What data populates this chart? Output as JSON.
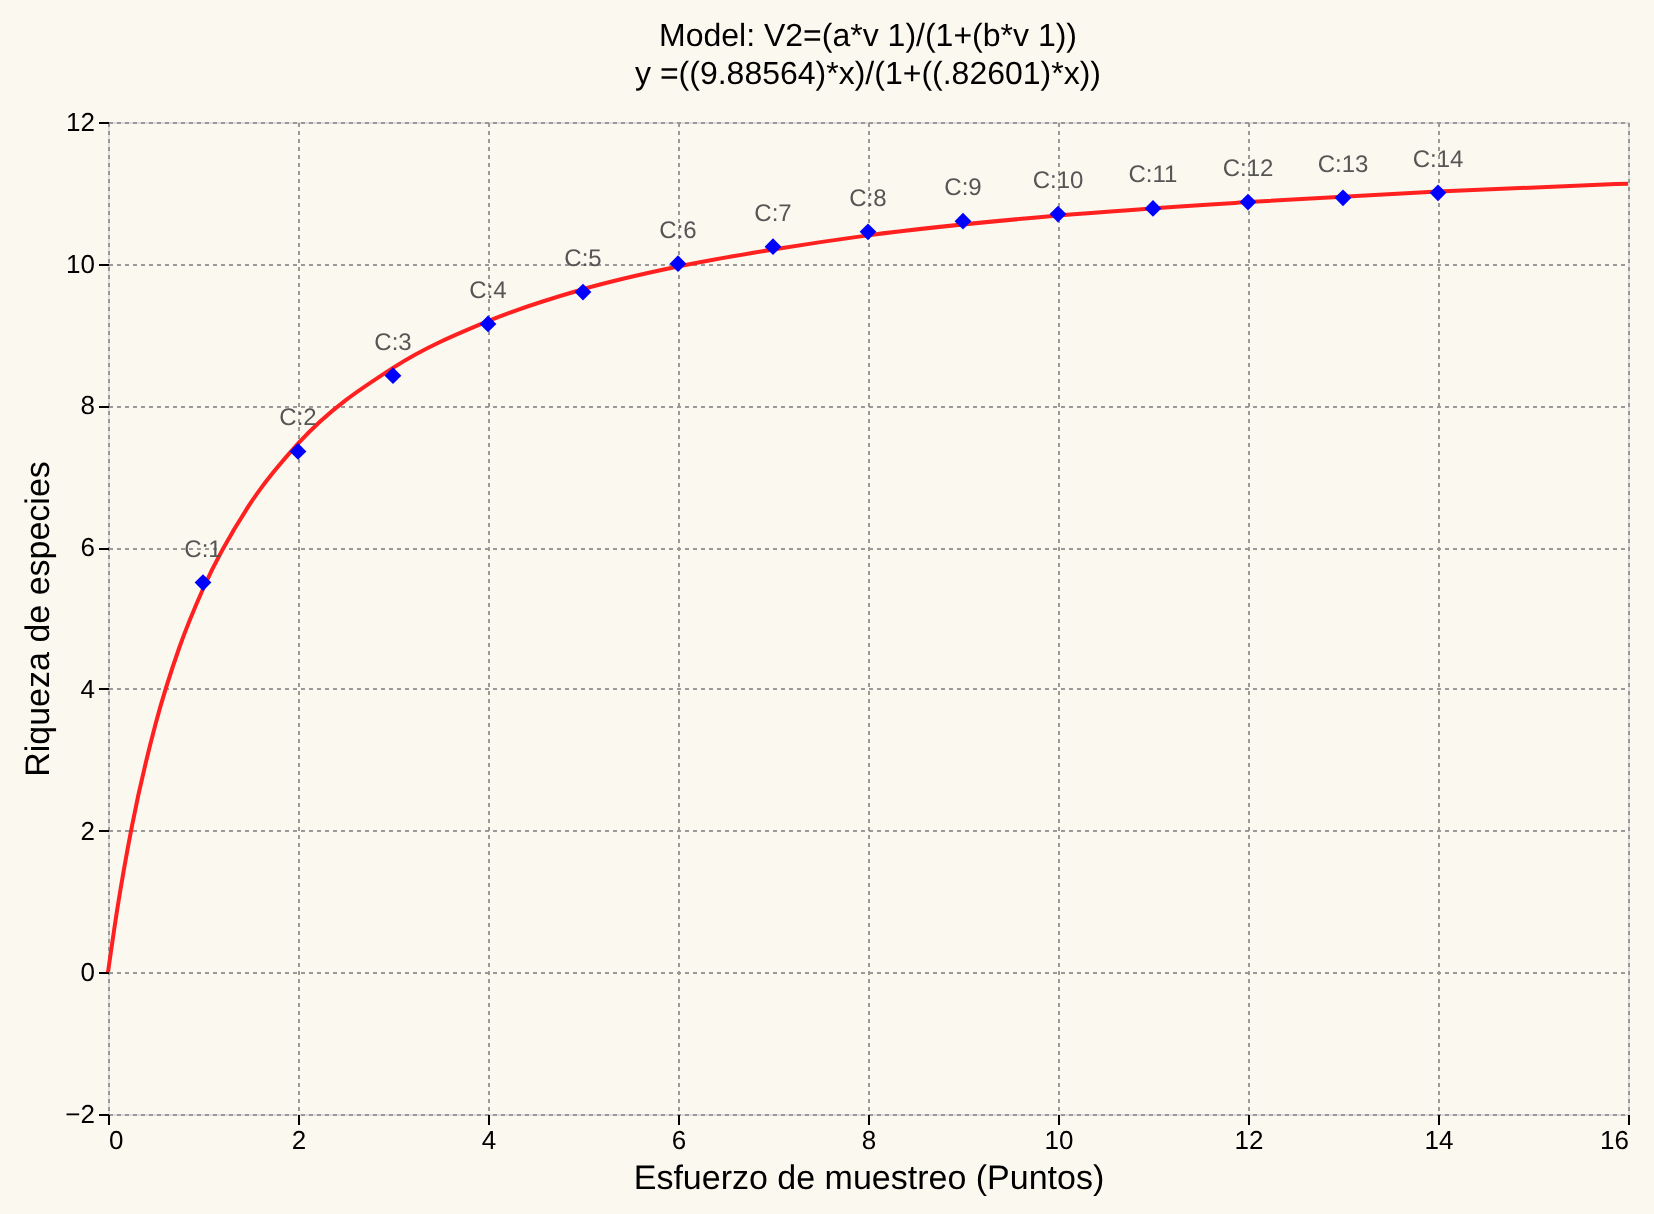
{
  "chart_data": {
    "type": "scatter",
    "title": "Model: V2=(a*v 1)/(1+(b*v 1))",
    "subtitle": "y =((9.88564)*x)/(1+((.82601)*x))",
    "xlabel": "Esfuerzo de muestreo (Puntos)",
    "ylabel": "Riqueza de especies",
    "xlim": [
      0,
      16
    ],
    "ylim": [
      -2,
      12
    ],
    "xticks": [
      0,
      2,
      4,
      6,
      8,
      10,
      12,
      14,
      16
    ],
    "yticks": [
      -2,
      0,
      2,
      4,
      6,
      8,
      10,
      12
    ],
    "grid": true,
    "series": [
      {
        "type": "line",
        "color": "#ff2020",
        "marker": "none",
        "line_style": "solid",
        "x": [
          0,
          0.1,
          0.25,
          0.5,
          0.75,
          1,
          1.5,
          2,
          3,
          4,
          5,
          6,
          7,
          8,
          10,
          12,
          14,
          16
        ],
        "values": [
          0,
          0.91,
          2.05,
          3.5,
          4.58,
          5.41,
          6.62,
          7.46,
          8.53,
          9.19,
          9.64,
          9.96,
          10.2,
          10.4,
          10.68,
          10.87,
          11.02,
          11.13
        ]
      },
      {
        "color": "#0000ff",
        "marker": "diamond",
        "x": [
          1,
          2,
          3,
          4,
          5,
          6,
          7,
          8,
          9,
          10,
          11,
          12,
          13,
          14
        ],
        "values": [
          5.5,
          7.35,
          8.42,
          9.15,
          9.6,
          10.0,
          10.24,
          10.45,
          10.6,
          10.7,
          10.78,
          10.87,
          10.93,
          11.0
        ]
      }
    ],
    "annotations": [
      {
        "text": "C:1",
        "x": 1,
        "y": 5.5
      },
      {
        "text": "C:2",
        "x": 2,
        "y": 7.35
      },
      {
        "text": "C:3",
        "x": 3,
        "y": 8.42
      },
      {
        "text": "C:4",
        "x": 4,
        "y": 9.15
      },
      {
        "text": "C:5",
        "x": 5,
        "y": 9.6
      },
      {
        "text": "C:6",
        "x": 6,
        "y": 10.0
      },
      {
        "text": "C:7",
        "x": 7,
        "y": 10.24
      },
      {
        "text": "C:8",
        "x": 8,
        "y": 10.45
      },
      {
        "text": "C:9",
        "x": 9,
        "y": 10.6
      },
      {
        "text": "C:10",
        "x": 10,
        "y": 10.7
      },
      {
        "text": "C:11",
        "x": 11,
        "y": 10.78
      },
      {
        "text": "C:12",
        "x": 12,
        "y": 10.87
      },
      {
        "text": "C:13",
        "x": 13,
        "y": 10.93
      },
      {
        "text": "C:14",
        "x": 14,
        "y": 11.0
      }
    ]
  }
}
